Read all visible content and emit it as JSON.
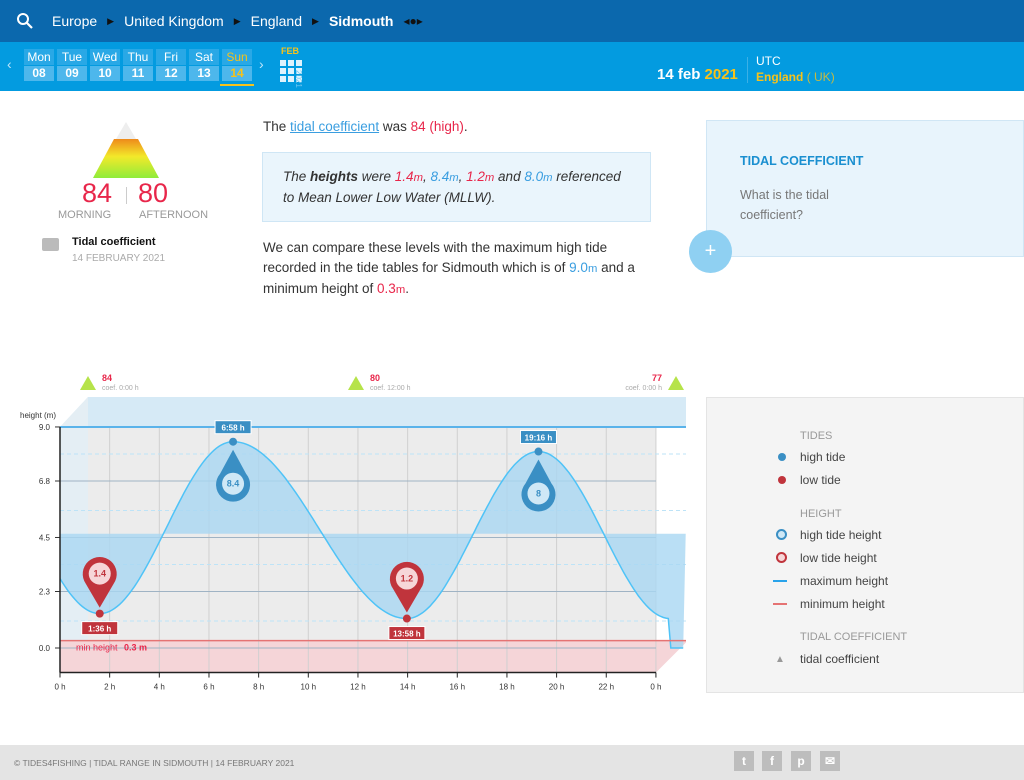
{
  "breadcrumb": {
    "items": [
      "Europe",
      "United Kingdom",
      "England",
      "Sidmouth"
    ]
  },
  "days": [
    {
      "w": "Mon",
      "n": "08"
    },
    {
      "w": "Tue",
      "n": "09"
    },
    {
      "w": "Wed",
      "n": "10"
    },
    {
      "w": "Thu",
      "n": "11"
    },
    {
      "w": "Fri",
      "n": "12"
    },
    {
      "w": "Sat",
      "n": "13"
    },
    {
      "w": "Sun",
      "n": "14",
      "selected": true
    }
  ],
  "calendar": {
    "month": "FEB",
    "year": "2021"
  },
  "date": {
    "day_month": "14 feb",
    "year": "2021",
    "tz": "UTC",
    "region": "England",
    "country": "( UK)"
  },
  "coef": {
    "morning": "84",
    "afternoon": "80",
    "morning_label": "MORNING",
    "afternoon_label": "AFTERNOON",
    "title": "Tidal coefficient",
    "date": "14 FEBRUARY 2021"
  },
  "text": {
    "p1a": "The ",
    "p1link": "tidal coefficient",
    "p1b": " was ",
    "p1c": "84 (high)",
    "p1d": ".",
    "q_a": "The ",
    "q_b": "heights",
    "q_c": " were ",
    "h1": "1.4",
    "h2": "8.4",
    "h3": "1.2",
    "h4": "8.0",
    "unit": "m",
    "q_d": " referenced to Mean Lower Low Water (MLLW).",
    "p2a": "We can compare these levels with the maximum high tide recorded in the tide tables for Sidmouth which is of ",
    "max": "9.0",
    "p2b": " and a minimum height of ",
    "min": "0.3",
    "p2c": "."
  },
  "card": {
    "title": "TIDAL COEFFICIENT",
    "body": "What is the tidal coefficient?",
    "plus": "+"
  },
  "legend": {
    "tides": "TIDES",
    "high": "high tide",
    "low": "low tide",
    "height": "HEIGHT",
    "hth": "high tide height",
    "lth": "low tide height",
    "maxh": "maximum height",
    "minh": "minimum height",
    "tc": "TIDAL COEFFICIENT",
    "tcv": "tidal coefficient"
  },
  "footer": "© TIDES4FISHING | TIDAL RANGE IN SIDMOUTH | 14 FEBRUARY 2021",
  "colors": {
    "high": "#3a8fc4",
    "low": "#c0343c",
    "curve": "#4fc3f7",
    "accent": "#f7c21a"
  },
  "chart_data": {
    "type": "line",
    "ylabel": "height (m)",
    "yticks": [
      "9.0",
      "6.8",
      "4.5",
      "2.3",
      "0.0"
    ],
    "xticks": [
      "0 h",
      "2 h",
      "4 h",
      "6 h",
      "8 h",
      "10 h",
      "12 h",
      "14 h",
      "16 h",
      "18 h",
      "20 h",
      "22 h",
      "0 h"
    ],
    "tides": [
      {
        "time": "1:36 h",
        "t": 1.6,
        "h": 1.4,
        "type": "low"
      },
      {
        "time": "6:58 h",
        "t": 6.97,
        "h": 8.4,
        "type": "high"
      },
      {
        "time": "13:58 h",
        "t": 13.97,
        "h": 1.2,
        "type": "low"
      },
      {
        "time": "19:16 h",
        "t": 19.27,
        "h": 8.0,
        "type": "high"
      }
    ],
    "max_height": 9.0,
    "min_height": 0.3,
    "min_label": "min height ",
    "min_value": "0.3 m",
    "coefficients": [
      {
        "value": "84",
        "label": "coef. 0:00 h"
      },
      {
        "value": "80",
        "label": "coef. 12:00 h"
      },
      {
        "value": "77",
        "label": "coef. 0:00 h"
      }
    ]
  }
}
